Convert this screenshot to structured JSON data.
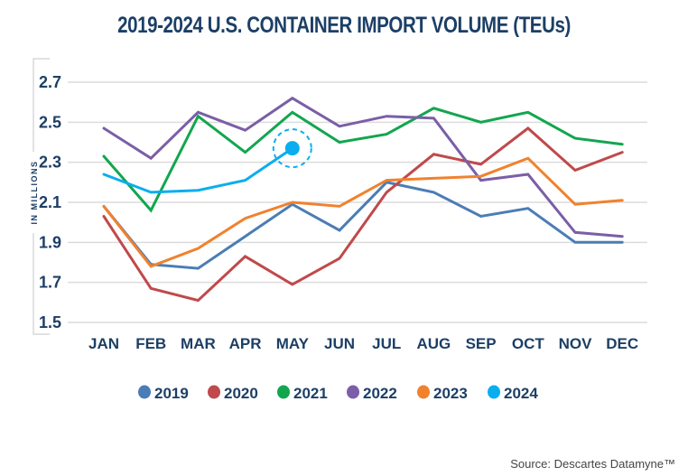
{
  "chart_data": {
    "type": "line",
    "title": "2019-2024 U.S. CONTAINER IMPORT VOLUME (TEUs)",
    "xlabel": "",
    "ylabel": "IN MILLIONS",
    "categories": [
      "JAN",
      "FEB",
      "MAR",
      "APR",
      "MAY",
      "JUN",
      "JUL",
      "AUG",
      "SEP",
      "OCT",
      "NOV",
      "DEC"
    ],
    "ylim": [
      1.5,
      2.7
    ],
    "yticks": [
      "2.7",
      "2.5",
      "2.3",
      "2.1",
      "1.9",
      "1.7",
      "1.5"
    ],
    "ytick_values": [
      2.7,
      2.5,
      2.3,
      2.1,
      1.9,
      1.7,
      1.5
    ],
    "grid": true,
    "legend_position": "bottom",
    "series": [
      {
        "name": "2019",
        "color": "#4a7db5",
        "values": [
          2.08,
          1.79,
          1.77,
          1.93,
          2.09,
          1.96,
          2.2,
          2.15,
          2.03,
          2.07,
          1.9,
          1.9
        ]
      },
      {
        "name": "2020",
        "color": "#c0494b",
        "values": [
          2.03,
          1.67,
          1.61,
          1.83,
          1.69,
          1.82,
          2.15,
          2.34,
          2.29,
          2.47,
          2.26,
          2.35
        ]
      },
      {
        "name": "2021",
        "color": "#12a64f",
        "values": [
          2.33,
          2.06,
          2.53,
          2.35,
          2.55,
          2.4,
          2.44,
          2.57,
          2.5,
          2.55,
          2.42,
          2.39
        ]
      },
      {
        "name": "2022",
        "color": "#7b5ea7",
        "values": [
          2.47,
          2.32,
          2.55,
          2.46,
          2.62,
          2.48,
          2.53,
          2.52,
          2.21,
          2.24,
          1.95,
          1.93
        ]
      },
      {
        "name": "2023",
        "color": "#f0822e",
        "values": [
          2.08,
          1.78,
          1.87,
          2.02,
          2.1,
          2.08,
          2.21,
          2.22,
          2.23,
          2.32,
          2.09,
          2.11
        ]
      },
      {
        "name": "2024",
        "color": "#0aaeef",
        "values": [
          2.24,
          2.15,
          2.16,
          2.21,
          2.37
        ]
      }
    ],
    "highlight": {
      "series": "2024",
      "category": "MAY",
      "value": 2.37
    }
  },
  "source": "Source: Descartes Datamyne™"
}
